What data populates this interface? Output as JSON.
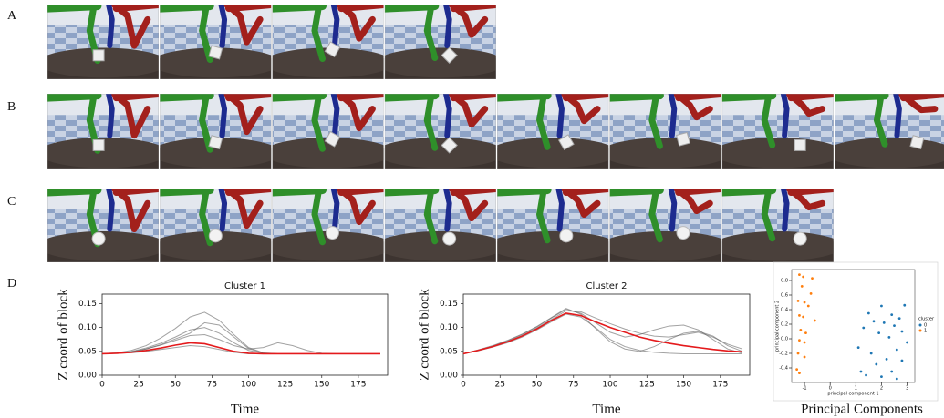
{
  "panel_labels": [
    "A",
    "B",
    "C",
    "D"
  ],
  "chart_data": [
    {
      "type": "line",
      "title": "Cluster 1",
      "ylabel": "Z coord of block",
      "xlabel": "Time",
      "x": [
        0,
        10,
        20,
        30,
        40,
        50,
        60,
        70,
        80,
        90,
        100,
        110,
        120,
        130,
        140,
        150,
        160,
        170,
        180,
        190
      ],
      "series": [
        {
          "color": "#555555",
          "values": [
            0.045,
            0.047,
            0.052,
            0.062,
            0.078,
            0.098,
            0.122,
            0.132,
            0.115,
            0.085,
            0.058,
            0.047,
            0.045,
            0.045,
            0.045,
            0.045,
            0.045,
            0.045,
            0.045,
            0.045
          ]
        },
        {
          "color": "#555555",
          "values": [
            0.045,
            0.046,
            0.05,
            0.057,
            0.067,
            0.08,
            0.095,
            0.1,
            0.088,
            0.068,
            0.052,
            0.046,
            0.045,
            0.045,
            0.045,
            0.045,
            0.045,
            0.045,
            0.045,
            0.045
          ]
        },
        {
          "color": "#555555",
          "values": [
            0.045,
            0.046,
            0.049,
            0.055,
            0.063,
            0.073,
            0.083,
            0.085,
            0.075,
            0.062,
            0.055,
            0.058,
            0.068,
            0.062,
            0.052,
            0.046,
            0.045,
            0.045,
            0.045,
            0.045
          ]
        },
        {
          "color": "#555555",
          "values": [
            0.045,
            0.046,
            0.047,
            0.05,
            0.054,
            0.058,
            0.062,
            0.06,
            0.054,
            0.048,
            0.045,
            0.045,
            0.045,
            0.045,
            0.045,
            0.045,
            0.045,
            0.045,
            0.045,
            0.045
          ]
        },
        {
          "color": "#555555",
          "values": [
            0.045,
            0.046,
            0.049,
            0.055,
            0.064,
            0.076,
            0.088,
            0.11,
            0.105,
            0.08,
            0.056,
            0.046,
            0.045,
            0.045,
            0.045,
            0.045,
            0.045,
            0.045,
            0.045,
            0.045
          ]
        },
        {
          "color": "#e41a1c",
          "values": [
            0.045,
            0.046,
            0.048,
            0.052,
            0.057,
            0.063,
            0.068,
            0.066,
            0.058,
            0.05,
            0.046,
            0.045,
            0.045,
            0.045,
            0.045,
            0.045,
            0.045,
            0.045,
            0.045,
            0.045
          ]
        }
      ],
      "xlim": [
        0,
        195
      ],
      "ylim": [
        0,
        0.17
      ],
      "xticks": [
        0,
        25,
        50,
        75,
        100,
        125,
        150,
        175
      ],
      "yticks": [
        {
          "value": 0,
          "label": "0.00"
        },
        0.05,
        {
          "value": 0.1,
          "label": "0.10"
        },
        0.15
      ]
    },
    {
      "type": "line",
      "title": "Cluster 2",
      "ylabel": "Z coord of block",
      "xlabel": "Time",
      "x": [
        0,
        10,
        20,
        30,
        40,
        50,
        60,
        70,
        80,
        90,
        100,
        110,
        120,
        130,
        140,
        150,
        160,
        170,
        180,
        190
      ],
      "series": [
        {
          "color": "#555555",
          "values": [
            0.045,
            0.052,
            0.061,
            0.072,
            0.085,
            0.101,
            0.12,
            0.138,
            0.13,
            0.11,
            0.09,
            0.08,
            0.085,
            0.095,
            0.103,
            0.105,
            0.095,
            0.075,
            0.055,
            0.046
          ]
        },
        {
          "color": "#555555",
          "values": [
            0.045,
            0.051,
            0.059,
            0.068,
            0.08,
            0.095,
            0.112,
            0.128,
            0.122,
            0.1,
            0.075,
            0.06,
            0.052,
            0.048,
            0.046,
            0.045,
            0.045,
            0.045,
            0.045,
            0.045
          ]
        },
        {
          "color": "#555555",
          "values": [
            0.045,
            0.052,
            0.06,
            0.07,
            0.083,
            0.099,
            0.117,
            0.135,
            0.133,
            0.12,
            0.108,
            0.097,
            0.088,
            0.082,
            0.08,
            0.085,
            0.09,
            0.08,
            0.065,
            0.055
          ]
        },
        {
          "color": "#555555",
          "values": [
            0.045,
            0.053,
            0.062,
            0.073,
            0.086,
            0.102,
            0.121,
            0.14,
            0.128,
            0.098,
            0.07,
            0.055,
            0.05,
            0.06,
            0.075,
            0.088,
            0.092,
            0.082,
            0.062,
            0.05
          ]
        },
        {
          "color": "#e41a1c",
          "values": [
            0.045,
            0.052,
            0.06,
            0.07,
            0.082,
            0.097,
            0.115,
            0.13,
            0.125,
            0.112,
            0.1,
            0.09,
            0.08,
            0.073,
            0.067,
            0.062,
            0.058,
            0.054,
            0.051,
            0.049
          ]
        }
      ],
      "xlim": [
        0,
        195
      ],
      "ylim": [
        0,
        0.17
      ],
      "xticks": [
        0,
        25,
        50,
        75,
        100,
        125,
        150,
        175
      ],
      "yticks": [
        {
          "value": 0,
          "label": "0.00"
        },
        0.05,
        {
          "value": 0.1,
          "label": "0.10"
        },
        0.15
      ]
    },
    {
      "type": "scatter",
      "xlabel": "principal component 1",
      "ylabel": "principal component 2",
      "caption": "Principal Components",
      "legend_title": "cluster",
      "legend": "right",
      "series": [
        {
          "name": "0",
          "color": "#1f77b4",
          "x": [
            2.0,
            2.9,
            1.5,
            2.4,
            2.7,
            1.7,
            2.1,
            2.5,
            1.3,
            2.8,
            1.9,
            2.3,
            3.0,
            1.1,
            2.6,
            1.6,
            2.2,
            2.8,
            1.8,
            1.2,
            2.4,
            1.4,
            2.0,
            2.6
          ],
          "values": [
            0.45,
            0.46,
            0.35,
            0.33,
            0.28,
            0.24,
            0.22,
            0.18,
            0.15,
            0.1,
            0.08,
            0.02,
            -0.05,
            -0.12,
            -0.15,
            -0.2,
            -0.28,
            -0.3,
            -0.35,
            -0.45,
            -0.45,
            -0.5,
            -0.52,
            -0.55
          ]
        },
        {
          "name": "1",
          "color": "#ff7f0e",
          "x": [
            -1.2,
            -1.05,
            -0.7,
            -1.1,
            -0.75,
            -1.25,
            -1.0,
            -0.85,
            -1.2,
            -1.05,
            -0.6,
            -1.15,
            -0.95,
            -1.2,
            -1.0,
            -1.25,
            -1.0,
            -1.3,
            -1.2
          ],
          "values": [
            0.88,
            0.85,
            0.83,
            0.72,
            0.62,
            0.52,
            0.5,
            0.45,
            0.32,
            0.3,
            0.25,
            0.12,
            0.08,
            -0.02,
            -0.05,
            -0.2,
            -0.25,
            -0.42,
            -0.47
          ]
        }
      ],
      "xlim": [
        -1.5,
        3.3
      ],
      "ylim": [
        -0.6,
        0.95
      ],
      "xticks": [
        -1,
        0,
        1,
        2,
        3
      ],
      "yticks": [
        -0.4,
        -0.2,
        {
          "value": 0,
          "label": "0.0"
        },
        0.2,
        0.4,
        0.6,
        0.8
      ]
    }
  ]
}
